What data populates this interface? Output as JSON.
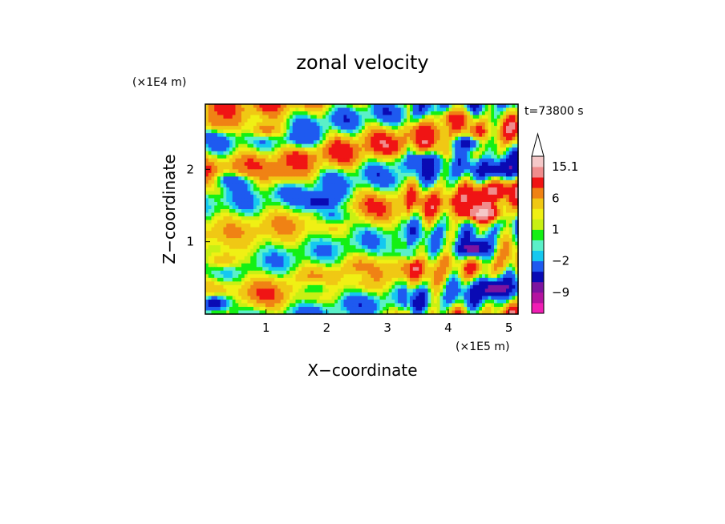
{
  "chart_data": {
    "type": "heatmap",
    "title": "zonal velocity",
    "xlabel": "X−coordinate",
    "ylabel": "Z−coordinate",
    "x_unit": "(×1E5 m)",
    "y_unit": "(×1E4 m)",
    "time_label": "t=73800 s",
    "xlim": [
      0,
      5.15
    ],
    "ylim": [
      0,
      2.9
    ],
    "x_ticks": [
      1,
      2,
      3,
      4,
      5
    ],
    "y_ticks": [
      1,
      2
    ],
    "colorbar": {
      "levels": [
        -14,
        -11,
        -9,
        -6,
        -3,
        -2,
        -1,
        0,
        1,
        2,
        4,
        6,
        9,
        12,
        15.1
      ],
      "labeled_ticks": [
        {
          "value": -9,
          "label": "−9"
        },
        {
          "value": -2,
          "label": "−2"
        },
        {
          "value": 1,
          "label": "1"
        },
        {
          "value": 6,
          "label": "6"
        },
        {
          "value": 15.1,
          "label": "15.1"
        }
      ],
      "colors": [
        "#f01eb4",
        "#b414a0",
        "#7c14a0",
        "#0a0ab4",
        "#1e5af0",
        "#14c8f0",
        "#5af0c8",
        "#14f014",
        "#c8f014",
        "#f0f014",
        "#f0c814",
        "#f08214",
        "#f01414",
        "#f08c8c",
        "#f5c8c8"
      ],
      "extend_max": true
    },
    "features": [
      {
        "x": 4.55,
        "z": 1.4,
        "value": 15
      },
      {
        "x": 4.4,
        "z": 0.9,
        "value": -12
      },
      {
        "x": 4.75,
        "z": 0.35,
        "value": -12
      },
      {
        "x": 4.3,
        "z": 2.35,
        "value": -8
      },
      {
        "x": 4.9,
        "z": 2.0,
        "value": -10
      },
      {
        "x": 4.3,
        "z": 1.55,
        "value": 9
      },
      {
        "x": 4.75,
        "z": 1.7,
        "value": 10
      },
      {
        "x": 3.6,
        "z": 2.5,
        "value": 7
      },
      {
        "x": 4.1,
        "z": 2.7,
        "value": 8
      },
      {
        "x": 3.3,
        "z": 2.05,
        "value": -2
      },
      {
        "x": 3.65,
        "z": 2.1,
        "value": -7
      },
      {
        "x": 0.5,
        "z": 1.85,
        "value": -8
      },
      {
        "x": 0.7,
        "z": 2.0,
        "value": 6
      },
      {
        "x": 1.6,
        "z": 2.45,
        "value": -6
      },
      {
        "x": 2.1,
        "z": 1.35,
        "value": -4
      },
      {
        "x": 1.9,
        "z": 1.55,
        "value": -9
      },
      {
        "x": 0.15,
        "z": 0.15,
        "value": -9
      },
      {
        "x": 0.25,
        "z": 2.65,
        "value": 6
      },
      {
        "x": 1.3,
        "z": 1.95,
        "value": 6
      },
      {
        "x": 1.0,
        "z": 2.55,
        "value": 6
      },
      {
        "x": 2.5,
        "z": 0.5,
        "value": 1
      },
      {
        "x": 1.8,
        "z": 0.35,
        "value": -2
      },
      {
        "x": 3.3,
        "z": 0.85,
        "value": -2
      },
      {
        "x": 0.3,
        "z": 0.75,
        "value": 4
      }
    ]
  }
}
